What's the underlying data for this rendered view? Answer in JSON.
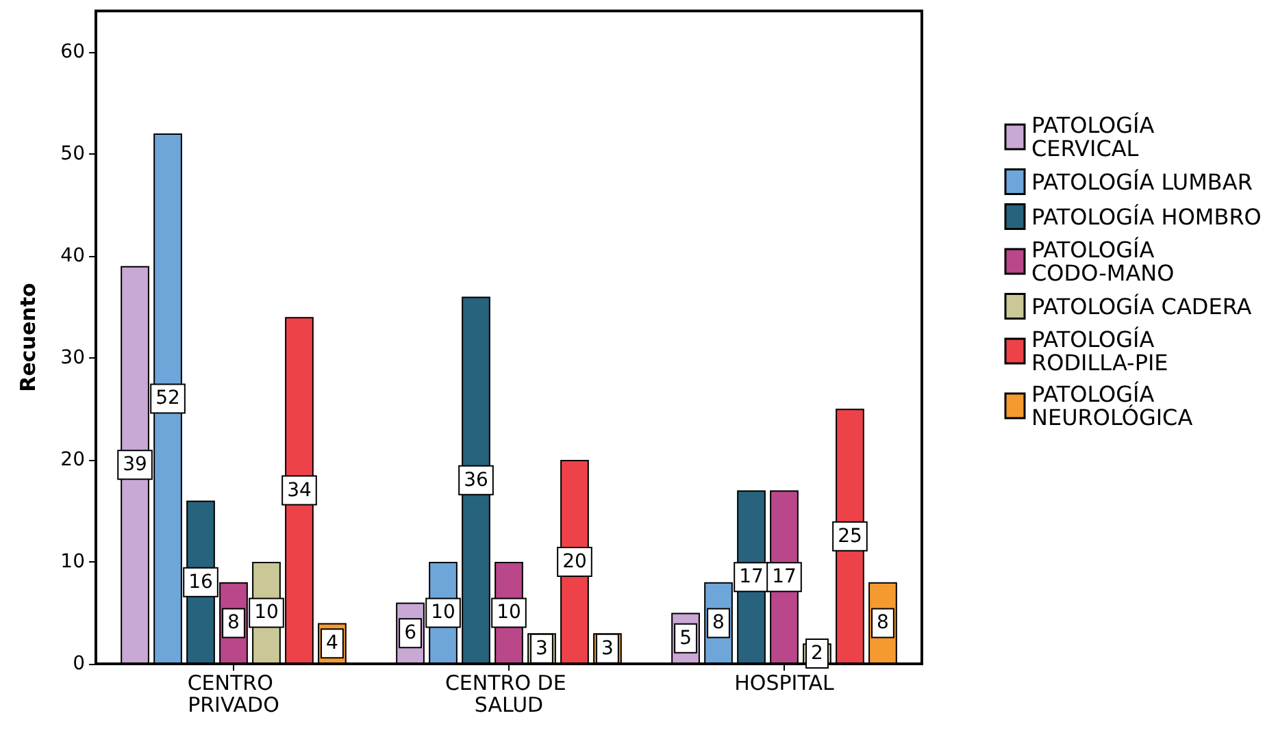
{
  "chart_data": {
    "type": "bar",
    "ylabel": "Recuento",
    "categories": [
      "CENTRO PRIVADO",
      "CENTRO DE SALUD",
      "HOSPITAL"
    ],
    "series": [
      {
        "name": "PATOLOGÍA CERVICAL",
        "color": "#c9a8d4",
        "values": [
          39,
          6,
          5
        ]
      },
      {
        "name": "PATOLOGÍA LUMBAR",
        "color": "#6ea6da",
        "values": [
          52,
          10,
          8
        ]
      },
      {
        "name": "PATOLOGÍA HOMBRO",
        "color": "#27637c",
        "values": [
          16,
          36,
          17
        ]
      },
      {
        "name": "PATOLOGÍA CODO-MANO",
        "color": "#b9478a",
        "values": [
          8,
          10,
          17
        ]
      },
      {
        "name": "PATOLOGÍA CADERA",
        "color": "#c9c896",
        "values": [
          10,
          3,
          2
        ]
      },
      {
        "name": "PATOLOGÍA RODILLA-PIE",
        "color": "#ee4249",
        "values": [
          34,
          20,
          25
        ]
      },
      {
        "name": "PATOLOGÍA NEUROLÓGICA",
        "color": "#f59a31",
        "values": [
          4,
          3,
          8
        ]
      }
    ],
    "ylim": [
      0,
      64
    ],
    "yticks": [
      0,
      10,
      20,
      30,
      40,
      50,
      60
    ],
    "grid": false,
    "legend": "right",
    "data_labels": true
  }
}
